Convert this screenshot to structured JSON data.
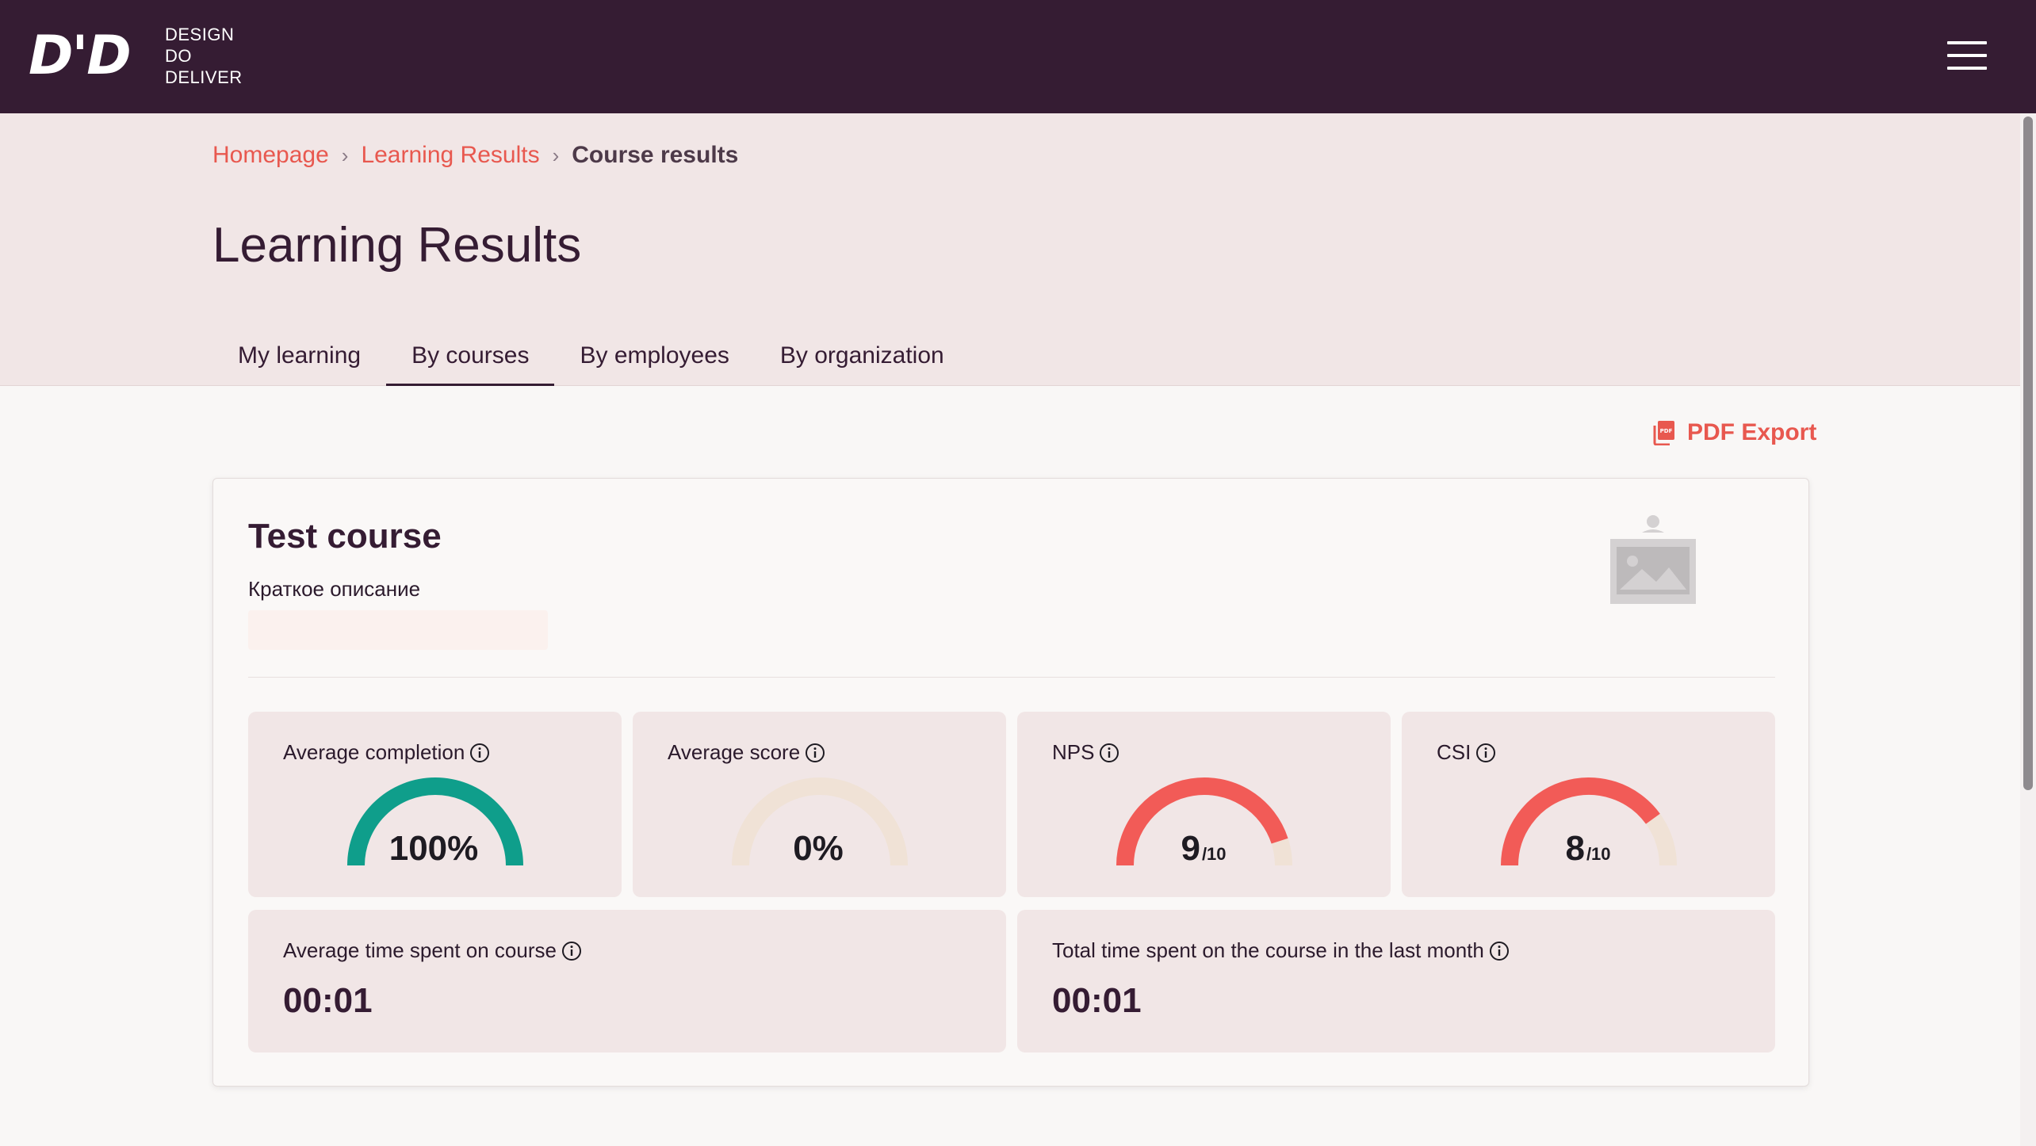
{
  "brand": {
    "logo_mark": "D'D",
    "name_lines": [
      "DESIGN",
      "DO",
      "DELIVER"
    ]
  },
  "breadcrumb": {
    "items": [
      "Homepage",
      "Learning Results"
    ],
    "current": "Course results",
    "separator": "›"
  },
  "page": {
    "title": "Learning Results"
  },
  "tabs": [
    {
      "label": "My learning",
      "active": false
    },
    {
      "label": "By courses",
      "active": true
    },
    {
      "label": "By employees",
      "active": false
    },
    {
      "label": "By organization",
      "active": false
    }
  ],
  "actions": {
    "pdf_export": "PDF Export"
  },
  "course": {
    "title": "Test course",
    "description": "Краткое описание"
  },
  "metrics": [
    {
      "label": "Average completion",
      "value": "100%",
      "suffix": "",
      "fraction": 1.0,
      "color": "#0f9e8b"
    },
    {
      "label": "Average score",
      "value": "0%",
      "suffix": "",
      "fraction": 0.0,
      "color": "#0f9e8b"
    },
    {
      "label": "NPS",
      "value": "9",
      "suffix": "/10",
      "fraction": 0.9,
      "color": "#f25b57"
    },
    {
      "label": "CSI",
      "value": "8",
      "suffix": "/10",
      "fraction": 0.8,
      "color": "#f25b57"
    }
  ],
  "time_metrics": [
    {
      "label": "Average time spent on course",
      "value": "00:01"
    },
    {
      "label": "Total time spent on the course in the last month",
      "value": "00:01"
    }
  ],
  "colors": {
    "topbar": "#351c33",
    "accent": "#e8584f",
    "gauge_track": "#f0e2d6",
    "completion": "#0f9e8b",
    "rating": "#f25b57"
  },
  "icons": {
    "menu": "hamburger-menu-icon",
    "pdf": "pdf-file-icon",
    "info": "info-icon",
    "image_placeholder": "image-placeholder-icon"
  }
}
